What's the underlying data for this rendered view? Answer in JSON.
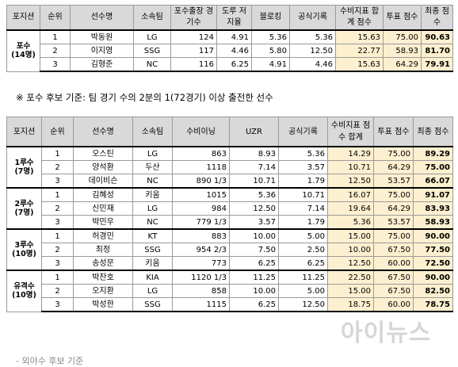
{
  "table1": {
    "headers": [
      "포지션",
      "순위",
      "선수명",
      "소속팀",
      "포수출장 경기수",
      "도루 저지율",
      "블로킹",
      "공식기록",
      "수비지표 합계 점수",
      "투표 점수",
      "최종 점수"
    ],
    "group": {
      "name": "포수",
      "count": "(14명)"
    },
    "rows": [
      [
        "1",
        "박동원",
        "LG",
        "124",
        "4.91",
        "5.36",
        "5.36",
        "15.63",
        "75.00",
        "90.63"
      ],
      [
        "2",
        "이지영",
        "SSG",
        "117",
        "4.46",
        "5.80",
        "12.50",
        "22.77",
        "58.93",
        "81.70"
      ],
      [
        "3",
        "김형준",
        "NC",
        "116",
        "6.25",
        "4.91",
        "4.46",
        "15.63",
        "64.29",
        "79.91"
      ]
    ]
  },
  "note": "※ 포수 후보 기준: 팀 경기 수의 2분의 1(72경기) 이상 출전한 선수",
  "table2": {
    "headers": [
      "포지션",
      "순위",
      "선수명",
      "소속팀",
      "수비이닝",
      "UZR",
      "공식기록",
      "수비지표 점수 합계",
      "투표 점수",
      "최종 점수"
    ],
    "groups": [
      {
        "name": "1루수",
        "count": "(7명)",
        "rows": [
          [
            "1",
            "오스틴",
            "LG",
            "863",
            "8.93",
            "5.36",
            "14.29",
            "75.00",
            "89.29"
          ],
          [
            "2",
            "양석환",
            "두산",
            "1118",
            "7.14",
            "3.57",
            "10.71",
            "64.29",
            "75.00"
          ],
          [
            "3",
            "데이비슨",
            "NC",
            "890 1/3",
            "10.71",
            "1.79",
            "12.50",
            "53.57",
            "66.07"
          ]
        ]
      },
      {
        "name": "2루수",
        "count": "(7명)",
        "rows": [
          [
            "1",
            "김혜성",
            "키움",
            "1015",
            "5.36",
            "10.71",
            "16.07",
            "75.00",
            "91.07"
          ],
          [
            "2",
            "신민재",
            "LG",
            "984",
            "12.50",
            "7.14",
            "19.64",
            "64.29",
            "83.93"
          ],
          [
            "3",
            "박민우",
            "NC",
            "779 1/3",
            "3.57",
            "1.79",
            "5.36",
            "53.57",
            "58.93"
          ]
        ]
      },
      {
        "name": "3루수",
        "count": "(10명)",
        "rows": [
          [
            "1",
            "허경민",
            "KT",
            "883",
            "10.00",
            "5.00",
            "15.00",
            "75.00",
            "90.00"
          ],
          [
            "2",
            "최정",
            "SSG",
            "954 2/3",
            "7.50",
            "2.50",
            "10.00",
            "67.50",
            "77.50"
          ],
          [
            "3",
            "송성문",
            "키움",
            "773",
            "6.25",
            "6.25",
            "12.50",
            "60.00",
            "72.50"
          ]
        ]
      },
      {
        "name": "유격수",
        "count": "(10명)",
        "rows": [
          [
            "1",
            "박찬호",
            "KIA",
            "1120 1/3",
            "11.25",
            "11.25",
            "22.50",
            "67.50",
            "90.00"
          ],
          [
            "2",
            "오지환",
            "LG",
            "858",
            "10.00",
            "5.00",
            "15.00",
            "67.50",
            "82.50"
          ],
          [
            "3",
            "박성한",
            "SSG",
            "1115",
            "6.25",
            "12.50",
            "18.75",
            "60.00",
            "78.75"
          ]
        ]
      }
    ]
  },
  "watermark": "아이뉴스",
  "bottom_fragment": "- 외야수 후보 기준"
}
